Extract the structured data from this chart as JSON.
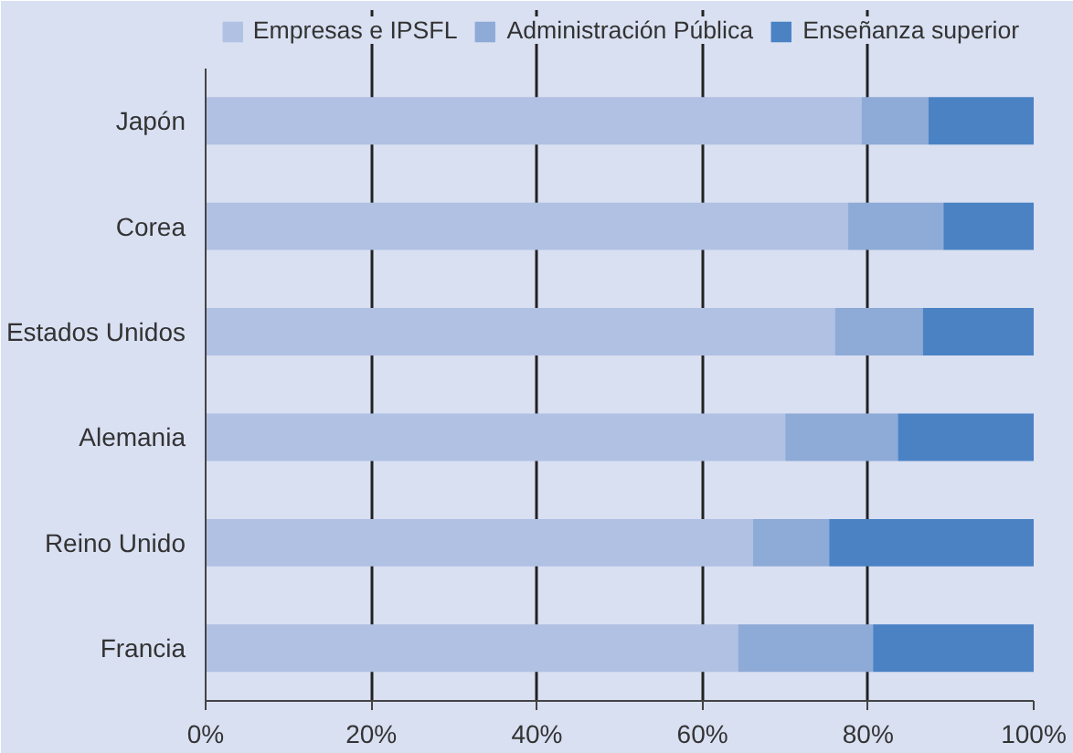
{
  "chart_data": {
    "type": "bar",
    "orientation": "horizontal",
    "stacked": true,
    "categories": [
      "Japón",
      "Corea",
      "Estados Unidos",
      "Alemania",
      "Reino Unido",
      "Francia"
    ],
    "series": [
      {
        "name": "Empresas e IPSFL",
        "color": "#b0c1e3",
        "values": [
          79.2,
          77.6,
          76.0,
          70.0,
          66.1,
          64.3
        ]
      },
      {
        "name": "Administración Pública",
        "color": "#8eaad6",
        "values": [
          8.1,
          11.5,
          10.6,
          13.6,
          9.2,
          16.3
        ]
      },
      {
        "name": "Enseñanza superior",
        "color": "#4a82c4",
        "values": [
          12.7,
          10.9,
          13.4,
          16.4,
          24.7,
          19.4
        ]
      }
    ],
    "xlim": [
      0,
      100
    ],
    "xticks": [
      {
        "value": 0,
        "label": "0%"
      },
      {
        "value": 20,
        "label": "20%"
      },
      {
        "value": 40,
        "label": "40%"
      },
      {
        "value": 60,
        "label": "60%"
      },
      {
        "value": 80,
        "label": "80%"
      },
      {
        "value": 100,
        "label": "100%"
      }
    ],
    "grid": "x",
    "legend": "top"
  }
}
